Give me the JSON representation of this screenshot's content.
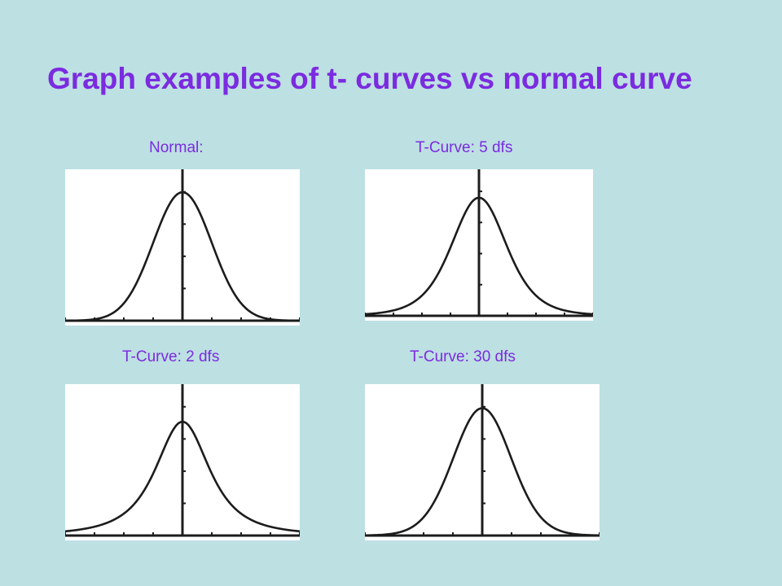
{
  "slide": {
    "title": "Graph examples of t- curves vs normal curve"
  },
  "colors": {
    "background": "#bde0e3",
    "text": "#7b2be0",
    "curve": "#1c1c1c"
  },
  "chart_data": [
    {
      "type": "line",
      "distribution": "normal",
      "label": "Normal:",
      "df": null,
      "xlim": [
        -4,
        4
      ],
      "ylim": [
        0,
        0.45
      ],
      "grid": false
    },
    {
      "type": "line",
      "distribution": "t",
      "label": "T-Curve: 5 dfs",
      "df": 5,
      "xlim": [
        -4,
        4
      ],
      "ylim": [
        0,
        0.45
      ],
      "grid": false
    },
    {
      "type": "line",
      "distribution": "t",
      "label": "T-Curve: 2 dfs",
      "df": 2,
      "xlim": [
        -4,
        4
      ],
      "ylim": [
        0,
        0.45
      ],
      "grid": false
    },
    {
      "type": "line",
      "distribution": "t",
      "label": "T-Curve: 30 dfs",
      "df": 30,
      "xlim": [
        -4,
        4
      ],
      "ylim": [
        0,
        0.45
      ],
      "grid": false
    }
  ]
}
